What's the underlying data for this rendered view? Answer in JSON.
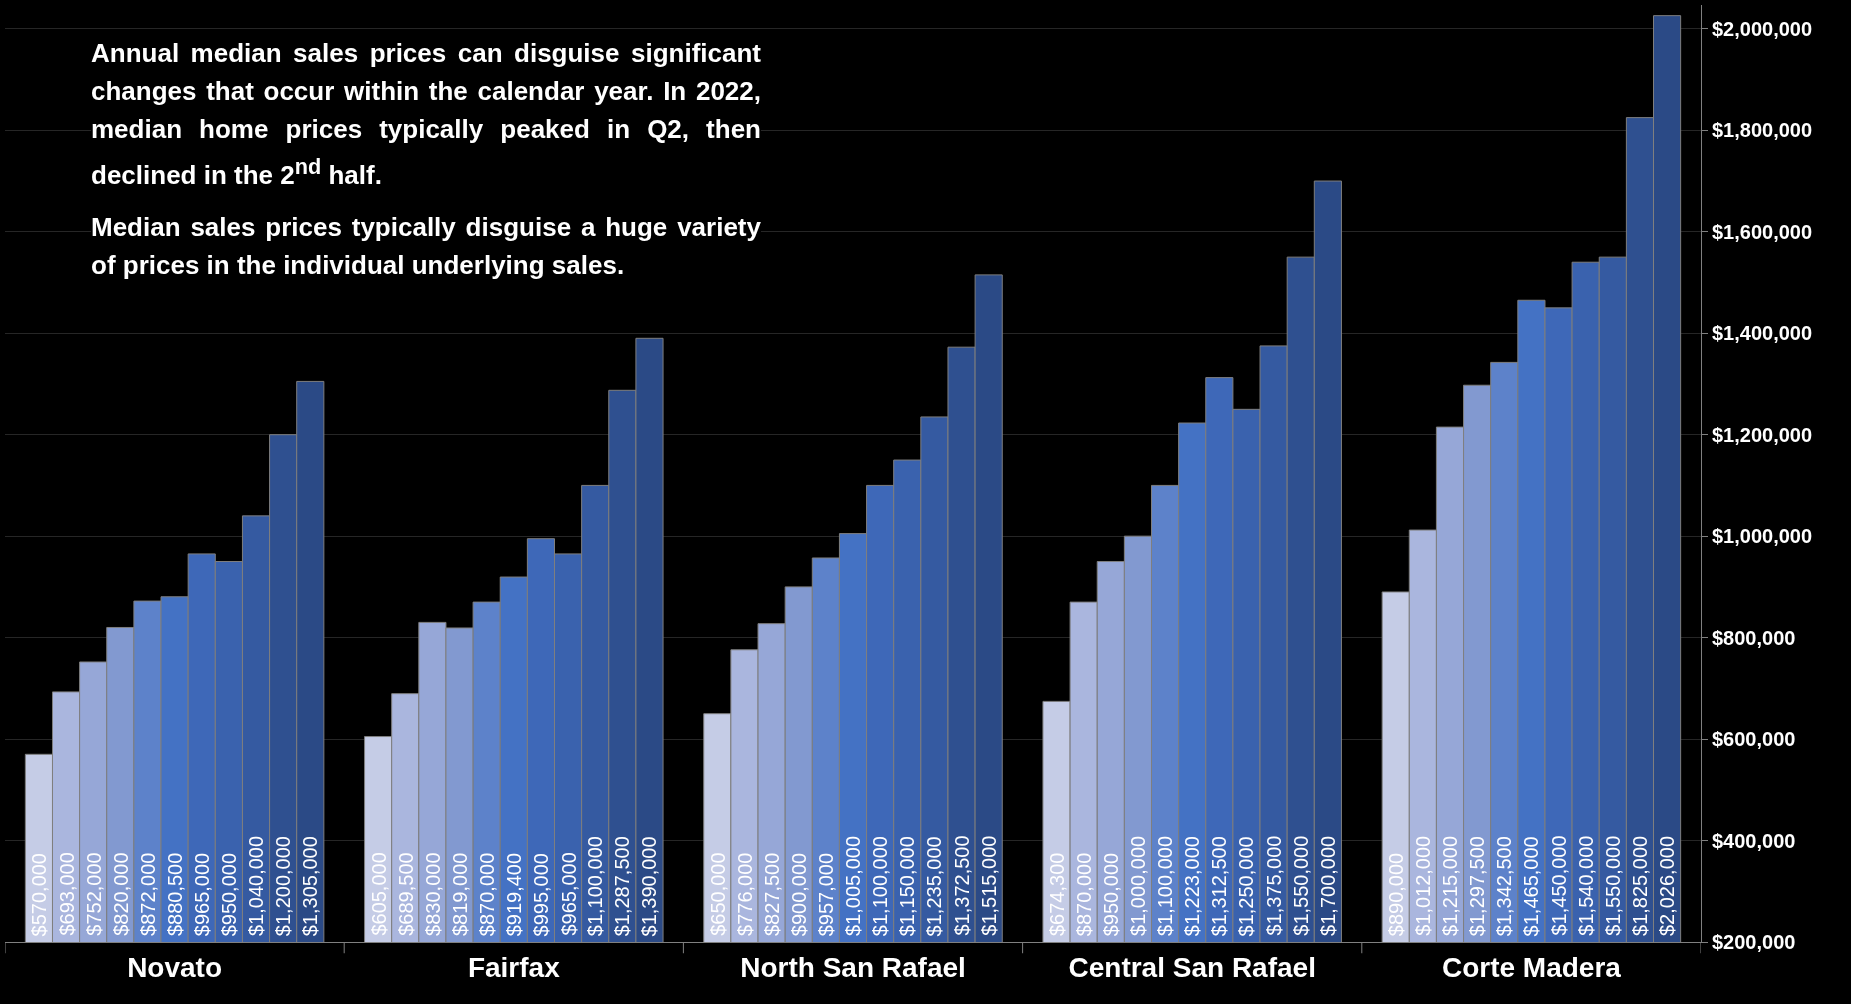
{
  "chart_data": {
    "type": "bar",
    "categories": [
      "Novato",
      "Fairfax",
      "North San Rafael",
      "Central San Rafael",
      "Corte Madera"
    ],
    "series": [
      {
        "color": "#c5cce6",
        "values": [
          570000,
          605000,
          650000,
          674300,
          890000
        ],
        "value_labels": [
          "$570,000",
          "$605,000",
          "$650,000",
          "$674,300",
          "$890,000"
        ]
      },
      {
        "color": "#aab6de",
        "values": [
          693000,
          689500,
          776000,
          870000,
          1012000
        ],
        "value_labels": [
          "$693,000",
          "$689,500",
          "$776,000",
          "$870,000",
          "$1,012,000"
        ]
      },
      {
        "color": "#96a7d7",
        "values": [
          752000,
          830000,
          827500,
          950000,
          1215000
        ],
        "value_labels": [
          "$752,000",
          "$830,000",
          "$827,500",
          "$950,000",
          "$1,215,000"
        ]
      },
      {
        "color": "#8299d0",
        "values": [
          820000,
          819000,
          900000,
          1000000,
          1297500
        ],
        "value_labels": [
          "$820,000",
          "$819,000",
          "$900,000",
          "$1,000,000",
          "$1,297,500"
        ]
      },
      {
        "color": "#5d82ca",
        "values": [
          872000,
          870000,
          957000,
          1100000,
          1342500
        ],
        "value_labels": [
          "$872,000",
          "$870,000",
          "$957,000",
          "$1,100,000",
          "$1,342,500"
        ]
      },
      {
        "color": "#4472c4",
        "values": [
          880500,
          919400,
          1005000,
          1223000,
          1465000
        ],
        "value_labels": [
          "$880,500",
          "$919,400",
          "$1,005,000",
          "$1,223,000",
          "$1,465,000"
        ]
      },
      {
        "color": "#3e68b8",
        "values": [
          965000,
          995000,
          1100000,
          1312500,
          1450000
        ],
        "value_labels": [
          "$965,000",
          "$995,000",
          "$1,100,000",
          "$1,312,500",
          "$1,450,000"
        ]
      },
      {
        "color": "#3a62ae",
        "values": [
          950000,
          965000,
          1150000,
          1250000,
          1540000
        ],
        "value_labels": [
          "$950,000",
          "$965,000",
          "$1,150,000",
          "$1,250,000",
          "$1,540,000"
        ]
      },
      {
        "color": "#355aa1",
        "values": [
          1040000,
          1100000,
          1235000,
          1375000,
          1550000
        ],
        "value_labels": [
          "$1,040,000",
          "$1,100,000",
          "$1,235,000",
          "$1,375,000",
          "$1,550,000"
        ]
      },
      {
        "color": "#2f5090",
        "values": [
          1200000,
          1287500,
          1372500,
          1550000,
          1825000
        ],
        "value_labels": [
          "$1,200,000",
          "$1,287,500",
          "$1,372,500",
          "$1,550,000",
          "$1,825,000"
        ]
      },
      {
        "color": "#2b4a86",
        "values": [
          1305000,
          1390000,
          1515000,
          1700000,
          2026000
        ],
        "value_labels": [
          "$1,305,000",
          "$1,390,000",
          "$1,515,000",
          "$1,700,000",
          "$2,026,000"
        ]
      }
    ],
    "ylim": [
      200000,
      2047000
    ],
    "yticks": [
      {
        "value": 200000,
        "label": "$200,000"
      },
      {
        "value": 400000,
        "label": "$400,000"
      },
      {
        "value": 600000,
        "label": "$600,000"
      },
      {
        "value": 800000,
        "label": "$800,000"
      },
      {
        "value": 1000000,
        "label": "$1,000,000"
      },
      {
        "value": 1200000,
        "label": "$1,200,000"
      },
      {
        "value": 1400000,
        "label": "$1,400,000"
      },
      {
        "value": 1600000,
        "label": "$1,600,000"
      },
      {
        "value": 1800000,
        "label": "$1,800,000"
      },
      {
        "value": 2000000,
        "label": "$2,000,000"
      }
    ],
    "grid": "y",
    "annotations": [
      "Annual median sales prices can disguise significant changes that occur within the calendar year. In 2022, median home prices typically peaked in Q2, then declined in the 2$^{nd}$ half.",
      "Median sales prices typically disguise a huge variety of prices in the individual underlying sales."
    ]
  }
}
